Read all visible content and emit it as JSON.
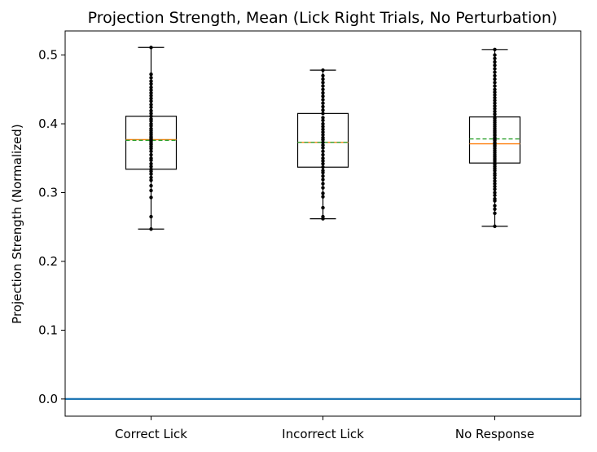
{
  "chart_data": {
    "type": "box",
    "title": "Projection Strength, Mean (Lick Right Trials, No Perturbation)",
    "xlabel": "",
    "ylabel": "Projection Strength (Normalized)",
    "ylim": [
      -0.025,
      0.535
    ],
    "yticks": [
      0.0,
      0.1,
      0.2,
      0.3,
      0.4,
      0.5
    ],
    "ytick_labels": [
      "0.0",
      "0.1",
      "0.2",
      "0.3",
      "0.4",
      "0.5"
    ],
    "categories": [
      "Correct Lick",
      "Incorrect Lick",
      "No Response"
    ],
    "boxes": [
      {
        "whisker_low": 0.247,
        "q1": 0.334,
        "median": 0.377,
        "mean": 0.376,
        "q3": 0.411,
        "whisker_high": 0.511,
        "points": [
          0.247,
          0.265,
          0.293,
          0.303,
          0.31,
          0.318,
          0.322,
          0.327,
          0.331,
          0.334,
          0.338,
          0.342,
          0.347,
          0.35,
          0.355,
          0.36,
          0.364,
          0.367,
          0.37,
          0.372,
          0.375,
          0.377,
          0.379,
          0.381,
          0.384,
          0.387,
          0.39,
          0.393,
          0.397,
          0.4,
          0.404,
          0.407,
          0.411,
          0.415,
          0.419,
          0.424,
          0.428,
          0.433,
          0.437,
          0.441,
          0.445,
          0.449,
          0.453,
          0.458,
          0.462,
          0.467,
          0.472,
          0.511
        ]
      },
      {
        "whisker_low": 0.262,
        "q1": 0.337,
        "median": 0.373,
        "mean": 0.373,
        "q3": 0.415,
        "whisker_high": 0.478,
        "points": [
          0.262,
          0.265,
          0.278,
          0.294,
          0.299,
          0.307,
          0.313,
          0.319,
          0.324,
          0.329,
          0.332,
          0.337,
          0.342,
          0.346,
          0.35,
          0.355,
          0.36,
          0.365,
          0.369,
          0.373,
          0.377,
          0.38,
          0.384,
          0.388,
          0.392,
          0.396,
          0.4,
          0.405,
          0.409,
          0.415,
          0.42,
          0.425,
          0.43,
          0.435,
          0.44,
          0.445,
          0.45,
          0.455,
          0.46,
          0.465,
          0.47,
          0.478
        ]
      },
      {
        "whisker_low": 0.251,
        "q1": 0.343,
        "median": 0.371,
        "mean": 0.378,
        "q3": 0.41,
        "whisker_high": 0.508,
        "points": [
          0.251,
          0.27,
          0.276,
          0.281,
          0.288,
          0.291,
          0.296,
          0.3,
          0.305,
          0.309,
          0.313,
          0.317,
          0.321,
          0.325,
          0.328,
          0.332,
          0.335,
          0.338,
          0.341,
          0.343,
          0.346,
          0.349,
          0.352,
          0.355,
          0.358,
          0.361,
          0.364,
          0.367,
          0.369,
          0.371,
          0.373,
          0.376,
          0.378,
          0.38,
          0.383,
          0.385,
          0.388,
          0.39,
          0.393,
          0.396,
          0.399,
          0.402,
          0.405,
          0.408,
          0.41,
          0.414,
          0.418,
          0.422,
          0.426,
          0.43,
          0.434,
          0.438,
          0.442,
          0.446,
          0.45,
          0.455,
          0.46,
          0.465,
          0.47,
          0.475,
          0.48,
          0.485,
          0.49,
          0.495,
          0.5,
          0.508
        ]
      }
    ],
    "hline": {
      "y": 0.0,
      "color": "#1f77b4"
    },
    "colors": {
      "box": "#000000",
      "points": "#000000",
      "median": "#ff7f0e",
      "mean": "#2ca02c",
      "hline": "#1f77b4"
    },
    "grid": false,
    "legend": "none"
  }
}
